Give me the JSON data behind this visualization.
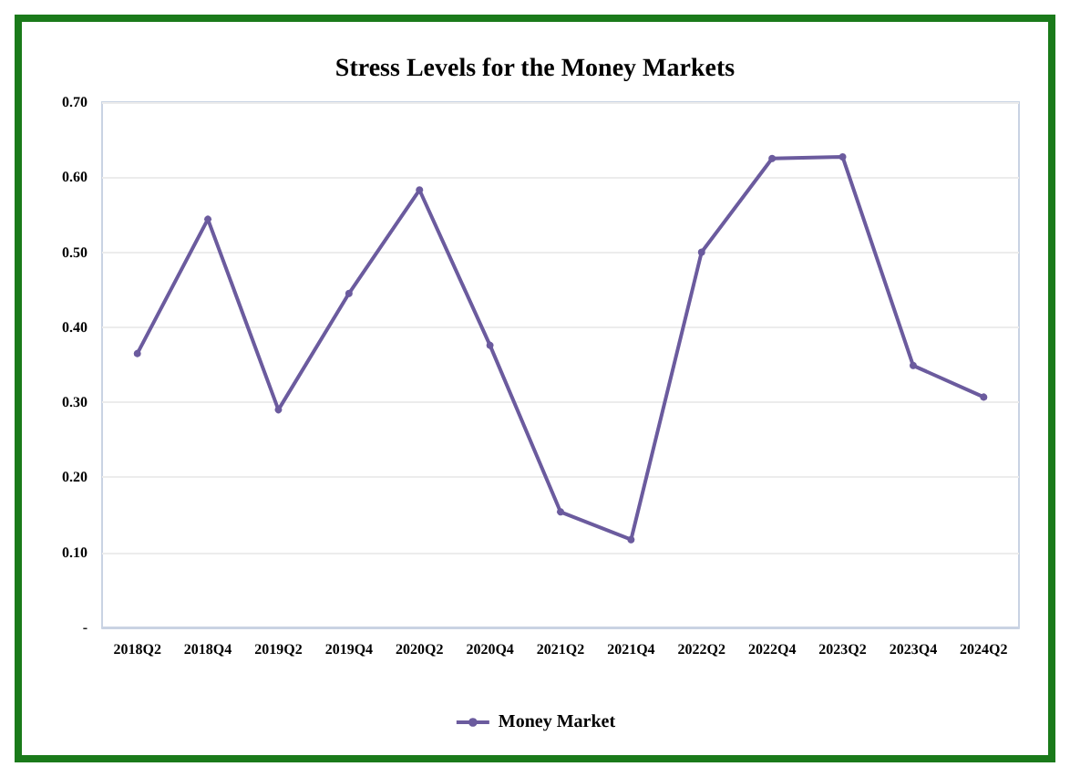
{
  "chart_data": {
    "type": "line",
    "title": "Stress Levels for the Money Markets",
    "categories": [
      "2018Q2",
      "2018Q4",
      "2019Q2",
      "2019Q4",
      "2020Q2",
      "2020Q4",
      "2021Q2",
      "2021Q4",
      "2022Q2",
      "2022Q4",
      "2023Q2",
      "2023Q4",
      "2024Q2"
    ],
    "series": [
      {
        "name": "Money Market",
        "color": "#6b5b9e",
        "values": [
          0.365,
          0.544,
          0.29,
          0.445,
          0.583,
          0.376,
          0.154,
          0.117,
          0.5,
          0.625,
          0.627,
          0.349,
          0.307
        ]
      }
    ],
    "ylim": [
      0,
      0.7
    ],
    "yticks": [
      {
        "value": 0,
        "label": "-"
      },
      {
        "value": 0.1,
        "label": "0.10"
      },
      {
        "value": 0.2,
        "label": "0.20"
      },
      {
        "value": 0.3,
        "label": "0.30"
      },
      {
        "value": 0.4,
        "label": "0.40"
      },
      {
        "value": 0.5,
        "label": "0.50"
      },
      {
        "value": 0.6,
        "label": "0.60"
      },
      {
        "value": 0.7,
        "label": "0.70"
      }
    ],
    "grid": "y",
    "legend": "bottom",
    "marker": "circle",
    "line_style": "solid"
  }
}
